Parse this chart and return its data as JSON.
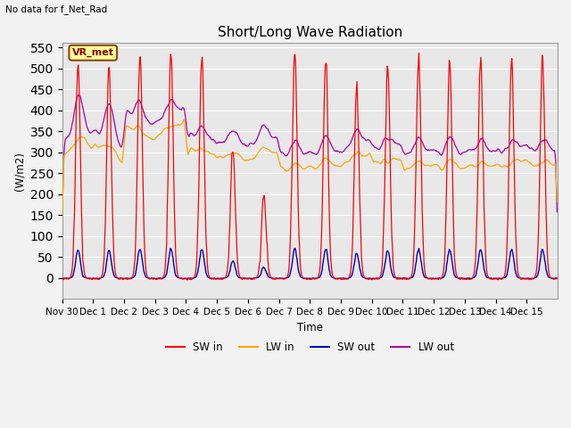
{
  "title": "Short/Long Wave Radiation",
  "ylabel": "(W/m2)",
  "xlabel": "Time",
  "top_left_text": "No data for f_Net_Rad",
  "legend_label": "VR_met",
  "ylim": [
    -50,
    560
  ],
  "background_color": "#e8e8e8",
  "line_colors": {
    "SW_in": "#ff0000",
    "LW_in": "#ffa500",
    "SW_out": "#0000bb",
    "LW_out": "#aa00aa"
  },
  "legend_items": [
    "SW in",
    "LW in",
    "SW out",
    "LW out"
  ],
  "x_tick_labels": [
    "Nov 30",
    "Dec 1",
    "Dec 2",
    "Dec 3",
    "Dec 4",
    "Dec 5",
    "Dec 6",
    "Dec 7",
    "Dec 8",
    "Dec 9",
    "Dec 10",
    "Dec 11",
    "Dec 12",
    "Dec 13",
    "Dec 14",
    "Dec 15"
  ],
  "num_days": 16
}
